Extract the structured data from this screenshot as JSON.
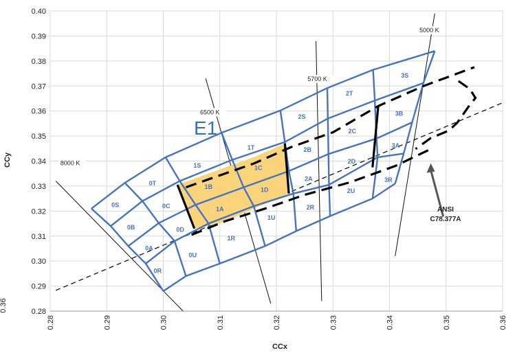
{
  "chart_data": {
    "type": "scatter",
    "title": "",
    "xlabel": "CCx",
    "ylabel": "CCy",
    "xlim": [
      0.28,
      0.36
    ],
    "ylim": [
      0.28,
      0.4
    ],
    "xticks": [
      "0.28",
      "0.29",
      "0.30",
      "0.31",
      "0.32",
      "0.33",
      "0.34",
      "0.35",
      "0.36"
    ],
    "yticks": [
      "0.28",
      "0.29",
      "0.30",
      "0.31",
      "0.32",
      "0.33",
      "0.34",
      "0.35",
      "0.36",
      "0.37",
      "0.38",
      "0.39",
      "0.40"
    ],
    "grid": true,
    "colors": {
      "bin_outline": "#4472c4",
      "highlight_fill": "#f9d47a",
      "text": "#222222",
      "e1": "#2e75b6"
    },
    "bin_grid": {
      "rows": [
        [
          [
            0.2873,
            0.321
          ],
          [
            0.2932,
            0.3313
          ],
          [
            0.3004,
            0.3415
          ],
          [
            0.3103,
            0.3513
          ],
          [
            0.3207,
            0.3602
          ],
          [
            0.329,
            0.3692
          ],
          [
            0.3371,
            0.3765
          ],
          [
            0.348,
            0.384
          ]
        ],
        [
          [
            0.2907,
            0.314
          ],
          [
            0.2963,
            0.324
          ],
          [
            0.3029,
            0.332
          ],
          [
            0.3122,
            0.3405
          ],
          [
            0.3215,
            0.3476
          ],
          [
            0.3291,
            0.357
          ],
          [
            0.3374,
            0.3642
          ],
          [
            0.346,
            0.3712
          ]
        ],
        [
          [
            0.2938,
            0.306
          ],
          [
            0.2992,
            0.3152
          ],
          [
            0.3057,
            0.3225
          ],
          [
            0.3142,
            0.3295
          ],
          [
            0.3222,
            0.336
          ],
          [
            0.3292,
            0.3428
          ],
          [
            0.3377,
            0.349
          ],
          [
            0.344,
            0.3555
          ]
        ],
        [
          [
            0.2969,
            0.299
          ],
          [
            0.302,
            0.308
          ],
          [
            0.308,
            0.315
          ],
          [
            0.316,
            0.322
          ],
          [
            0.323,
            0.327
          ],
          [
            0.3293,
            0.3305
          ],
          [
            0.3379,
            0.3415
          ],
          [
            0.3425,
            0.343
          ]
        ],
        [
          [
            0.3,
            0.288
          ],
          [
            0.304,
            0.294
          ],
          [
            0.31,
            0.299
          ],
          [
            0.318,
            0.306
          ],
          [
            0.3235,
            0.312
          ],
          [
            0.3295,
            0.318
          ],
          [
            0.337,
            0.325
          ],
          [
            0.341,
            0.331
          ]
        ]
      ]
    },
    "bins": [
      {
        "label": "0S",
        "x": 0.2915,
        "y": 0.3224
      },
      {
        "label": "0T",
        "x": 0.2981,
        "y": 0.3311
      },
      {
        "label": "0B",
        "x": 0.2943,
        "y": 0.3135
      },
      {
        "label": "0C",
        "x": 0.3005,
        "y": 0.322
      },
      {
        "label": "0A",
        "x": 0.2975,
        "y": 0.3051
      },
      {
        "label": "0D",
        "x": 0.303,
        "y": 0.3126
      },
      {
        "label": "0R",
        "x": 0.299,
        "y": 0.296
      },
      {
        "label": "0U",
        "x": 0.3052,
        "y": 0.3024
      },
      {
        "label": "1S",
        "x": 0.306,
        "y": 0.3382
      },
      {
        "label": "1T",
        "x": 0.3155,
        "y": 0.3453
      },
      {
        "label": "1B",
        "x": 0.308,
        "y": 0.3297
      },
      {
        "label": "1C",
        "x": 0.3168,
        "y": 0.3372
      },
      {
        "label": "1A",
        "x": 0.31,
        "y": 0.3208
      },
      {
        "label": "1D",
        "x": 0.3179,
        "y": 0.3285
      },
      {
        "label": "1R",
        "x": 0.312,
        "y": 0.3091
      },
      {
        "label": "1U",
        "x": 0.3191,
        "y": 0.3174
      },
      {
        "label": "2S",
        "x": 0.3245,
        "y": 0.3577
      },
      {
        "label": "2T",
        "x": 0.3329,
        "y": 0.367
      },
      {
        "label": "2B",
        "x": 0.3255,
        "y": 0.3445
      },
      {
        "label": "2C",
        "x": 0.3334,
        "y": 0.3519
      },
      {
        "label": "2A",
        "x": 0.3257,
        "y": 0.3328
      },
      {
        "label": "2D",
        "x": 0.3333,
        "y": 0.3398
      },
      {
        "label": "2R",
        "x": 0.326,
        "y": 0.3215
      },
      {
        "label": "2U",
        "x": 0.3332,
        "y": 0.328
      },
      {
        "label": "3S",
        "x": 0.3427,
        "y": 0.3742
      },
      {
        "label": "3B",
        "x": 0.3417,
        "y": 0.359
      },
      {
        "label": "3A",
        "x": 0.3411,
        "y": 0.3462
      },
      {
        "label": "3R",
        "x": 0.3398,
        "y": 0.3325
      }
    ],
    "e1_region": {
      "label": "E1",
      "polygon": [
        [
          0.3025,
          0.3305
        ],
        [
          0.3165,
          0.342
        ],
        [
          0.3215,
          0.347
        ],
        [
          0.3222,
          0.327
        ],
        [
          0.31,
          0.315
        ],
        [
          0.3055,
          0.313
        ]
      ]
    },
    "cct_lines": [
      {
        "label": "8000 K",
        "from": [
          0.281,
          0.332
        ],
        "to": [
          0.3035,
          0.28
        ]
      },
      {
        "label": "6500 K",
        "from": [
          0.3075,
          0.373
        ],
        "to": [
          0.319,
          0.283
        ]
      },
      {
        "label": "5700 K",
        "from": [
          0.327,
          0.388
        ],
        "to": [
          0.328,
          0.284
        ]
      },
      {
        "label": "5000 K",
        "from": [
          0.348,
          0.399
        ],
        "to": [
          0.341,
          0.302
        ]
      }
    ],
    "planckian_line": {
      "from": [
        0.281,
        0.2883
      ],
      "to": [
        0.36,
        0.3633
      ]
    },
    "ansi_upper": [
      [
        0.304,
        0.3295
      ],
      [
        0.309,
        0.3335
      ],
      [
        0.316,
        0.339
      ],
      [
        0.3225,
        0.3455
      ],
      [
        0.33,
        0.3515
      ],
      [
        0.338,
        0.362
      ],
      [
        0.346,
        0.37
      ],
      [
        0.355,
        0.3775
      ]
    ],
    "ansi_lower": [
      [
        0.305,
        0.3105
      ],
      [
        0.311,
        0.316
      ],
      [
        0.318,
        0.321
      ],
      [
        0.325,
        0.3265
      ],
      [
        0.333,
        0.3315
      ],
      [
        0.341,
        0.338
      ],
      [
        0.347,
        0.3445
      ]
    ],
    "ansi_boundary_right": [
      [
        0.3522,
        0.372
      ],
      [
        0.3542,
        0.3688
      ],
      [
        0.3552,
        0.3652
      ],
      [
        0.354,
        0.3618
      ],
      [
        0.352,
        0.3554
      ],
      [
        0.3505,
        0.3522
      ],
      [
        0.3473,
        0.3492
      ],
      [
        0.3446,
        0.3448
      ]
    ],
    "ansi_annotation": {
      "line1": "ANSI",
      "line2": "C78.377A",
      "arrow_from": [
        0.3495,
        0.3178
      ],
      "arrow_to": [
        0.3473,
        0.338
      ]
    },
    "clipped_left_label": "0.36"
  }
}
